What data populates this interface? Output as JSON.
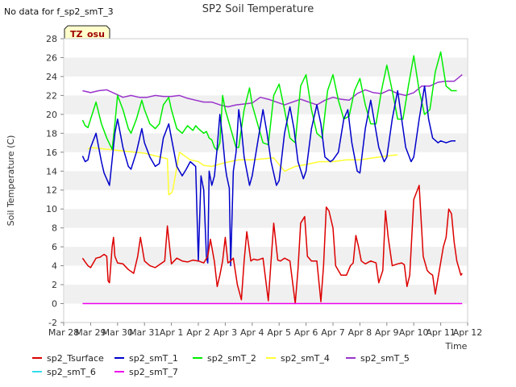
{
  "no_data_note": "No data for f_sp2_smT_3",
  "badge": "TZ_osu",
  "chart_data": {
    "type": "line",
    "title": "SP2 Soil Temperature",
    "ylabel": "Soil Temperature (C)",
    "xlabel": "Time",
    "ylim": [
      -2,
      28
    ],
    "xlim": [
      0,
      15
    ],
    "yticks": [
      -2,
      0,
      2,
      4,
      6,
      8,
      10,
      12,
      14,
      16,
      18,
      20,
      22,
      24,
      26,
      28
    ],
    "xticks": [
      "Mar 28",
      "Mar 29",
      "Mar 30",
      "Mar 31",
      "Apr 1",
      "Apr 2",
      "Apr 3",
      "Apr 4",
      "Apr 5",
      "Apr 6",
      "Apr 7",
      "Apr 8",
      "Apr 9",
      "Apr 10",
      "Apr 11",
      "Apr 12"
    ],
    "grid": true,
    "legend_position": "bottom",
    "series": [
      {
        "name": "sp2_Tsurface",
        "color": "#dd0000",
        "x": [
          0.7,
          0.8,
          0.9,
          1.0,
          1.2,
          1.35,
          1.5,
          1.6,
          1.65,
          1.7,
          1.8,
          1.85,
          1.9,
          2.0,
          2.2,
          2.4,
          2.6,
          2.75,
          2.85,
          3.0,
          3.2,
          3.4,
          3.6,
          3.75,
          3.85,
          4.0,
          4.2,
          4.4,
          4.6,
          4.8,
          5.0,
          5.2,
          5.35,
          5.45,
          5.6,
          5.7,
          5.8,
          5.9,
          6.0,
          6.1,
          6.2,
          6.3,
          6.45,
          6.6,
          6.7,
          6.8,
          6.95,
          7.05,
          7.2,
          7.4,
          7.6,
          7.7,
          7.8,
          7.95,
          8.05,
          8.2,
          8.4,
          8.6,
          8.7,
          8.8,
          8.95,
          9.05,
          9.2,
          9.4,
          9.55,
          9.65,
          9.75,
          9.85,
          10.0,
          10.1,
          10.3,
          10.5,
          10.65,
          10.75,
          10.85,
          10.95,
          11.05,
          11.2,
          11.4,
          11.6,
          11.7,
          11.85,
          11.95,
          12.05,
          12.2,
          12.4,
          12.55,
          12.65,
          12.75,
          12.85,
          13.0,
          13.2,
          13.35,
          13.5,
          13.6,
          13.7,
          13.8,
          13.95,
          14.1,
          14.2,
          14.3,
          14.4,
          14.5,
          14.6,
          14.7,
          14.75,
          14.8
        ],
        "y": [
          4.8,
          4.4,
          4.0,
          3.8,
          4.8,
          4.9,
          5.2,
          5.0,
          2.4,
          2.2,
          6.0,
          7.0,
          5.0,
          4.3,
          4.2,
          3.6,
          3.2,
          5.0,
          7.0,
          4.5,
          4.0,
          3.8,
          4.2,
          4.5,
          8.2,
          4.2,
          4.8,
          4.5,
          4.4,
          4.6,
          4.5,
          4.3,
          5.0,
          6.8,
          4.4,
          1.8,
          3.0,
          4.5,
          7.0,
          4.3,
          4.5,
          4.8,
          2.0,
          0.4,
          4.5,
          7.6,
          4.5,
          4.7,
          4.6,
          4.8,
          0.3,
          4.5,
          8.5,
          4.6,
          4.5,
          4.8,
          4.5,
          0.0,
          3.6,
          8.5,
          9.2,
          5.0,
          4.5,
          4.5,
          0.2,
          4.0,
          10.2,
          9.8,
          8.0,
          4.0,
          3.0,
          3.0,
          4.0,
          4.3,
          7.2,
          6.0,
          4.5,
          4.2,
          4.5,
          4.3,
          2.2,
          3.5,
          9.8,
          7.0,
          4.0,
          4.2,
          4.3,
          4.1,
          1.8,
          3.0,
          11.0,
          12.5,
          5.0,
          3.5,
          3.2,
          3.0,
          1.0,
          3.5,
          6.0,
          7.0,
          10.0,
          9.5,
          6.5,
          4.5,
          3.5,
          3.0,
          3.2
        ]
      },
      {
        "name": "sp2_smT_1",
        "color": "#0000cc",
        "x": [
          0.7,
          0.8,
          0.9,
          1.0,
          1.2,
          1.4,
          1.5,
          1.7,
          1.9,
          2.0,
          2.2,
          2.4,
          2.5,
          2.7,
          2.9,
          3.0,
          3.2,
          3.4,
          3.55,
          3.7,
          3.9,
          4.0,
          4.2,
          4.4,
          4.55,
          4.7,
          4.9,
          5.0,
          5.1,
          5.2,
          5.3,
          5.35,
          5.4,
          5.5,
          5.6,
          5.7,
          5.8,
          5.9,
          6.0,
          6.05,
          6.15,
          6.2,
          6.3,
          6.4,
          6.5,
          6.6,
          6.7,
          6.9,
          7.0,
          7.2,
          7.4,
          7.55,
          7.7,
          7.9,
          8.0,
          8.2,
          8.4,
          8.55,
          8.7,
          8.9,
          9.0,
          9.2,
          9.4,
          9.55,
          9.7,
          9.9,
          10.0,
          10.2,
          10.4,
          10.55,
          10.7,
          10.9,
          11.0,
          11.2,
          11.4,
          11.55,
          11.7,
          11.9,
          12.0,
          12.2,
          12.4,
          12.55,
          12.7,
          12.9,
          13.0,
          13.2,
          13.4,
          13.55,
          13.7,
          13.9,
          14.0,
          14.2,
          14.4,
          14.55
        ],
        "y": [
          15.6,
          15.0,
          15.2,
          16.5,
          18.0,
          15.0,
          13.8,
          12.5,
          18.0,
          19.5,
          16.5,
          14.5,
          14.2,
          16.0,
          18.5,
          17.0,
          15.5,
          14.5,
          14.8,
          17.5,
          19.0,
          17.5,
          14.5,
          13.5,
          14.2,
          15.0,
          14.5,
          4.5,
          13.5,
          12.0,
          5.0,
          4.3,
          14.0,
          12.5,
          13.5,
          16.5,
          20.0,
          17.5,
          14.5,
          13.5,
          12.2,
          4.0,
          14.0,
          16.0,
          20.5,
          18.5,
          15.5,
          12.5,
          13.5,
          17.0,
          20.5,
          18.0,
          15.0,
          12.5,
          13.0,
          18.0,
          20.8,
          18.5,
          15.0,
          13.2,
          14.0,
          18.5,
          21.0,
          19.0,
          15.5,
          15.0,
          15.2,
          16.0,
          19.5,
          20.5,
          17.0,
          14.0,
          13.8,
          18.5,
          21.5,
          19.0,
          16.5,
          15.0,
          15.5,
          19.5,
          22.5,
          19.5,
          16.5,
          15.0,
          15.5,
          19.5,
          23.0,
          19.5,
          17.5,
          17.0,
          17.2,
          17.0,
          17.2,
          17.2
        ]
      },
      {
        "name": "sp2_smT_2",
        "color": "#00ee00",
        "x": [
          0.7,
          0.8,
          0.9,
          1.0,
          1.2,
          1.4,
          1.6,
          1.8,
          1.9,
          2.0,
          2.2,
          2.4,
          2.5,
          2.7,
          2.9,
          3.0,
          3.2,
          3.4,
          3.55,
          3.7,
          3.9,
          4.0,
          4.2,
          4.4,
          4.6,
          4.8,
          4.9,
          5.0,
          5.2,
          5.3,
          5.4,
          5.5,
          5.6,
          5.7,
          5.8,
          5.9,
          6.0,
          6.2,
          6.4,
          6.5,
          6.7,
          6.9,
          7.0,
          7.2,
          7.4,
          7.6,
          7.8,
          8.0,
          8.2,
          8.4,
          8.6,
          8.8,
          9.0,
          9.2,
          9.4,
          9.6,
          9.8,
          10.0,
          10.2,
          10.4,
          10.6,
          10.8,
          11.0,
          11.2,
          11.4,
          11.6,
          11.8,
          12.0,
          12.2,
          12.4,
          12.6,
          12.8,
          13.0,
          13.2,
          13.4,
          13.6,
          13.8,
          14.0,
          14.2,
          14.4,
          14.6
        ],
        "y": [
          19.4,
          18.8,
          18.6,
          19.5,
          21.3,
          19.0,
          17.5,
          16.3,
          19.0,
          22.0,
          20.5,
          18.5,
          18.0,
          19.5,
          21.5,
          20.5,
          19.0,
          18.5,
          19.0,
          21.0,
          21.8,
          20.5,
          18.5,
          18.0,
          18.8,
          18.3,
          18.8,
          18.5,
          18.0,
          18.2,
          17.5,
          17.3,
          16.5,
          16.2,
          17.0,
          22.0,
          20.5,
          18.5,
          16.5,
          16.5,
          20.5,
          22.8,
          21.0,
          19.0,
          17.0,
          16.8,
          22.0,
          23.2,
          20.5,
          17.5,
          17.0,
          23.0,
          24.2,
          20.5,
          18.0,
          17.5,
          22.5,
          24.2,
          21.5,
          19.5,
          19.8,
          22.5,
          23.8,
          21.0,
          19.0,
          19.0,
          22.5,
          25.2,
          22.5,
          19.5,
          19.5,
          23.0,
          26.2,
          22.5,
          20.0,
          20.5,
          24.5,
          26.6,
          23.0,
          22.5,
          22.5
        ]
      },
      {
        "name": "sp2_smT_4",
        "color": "#ffff33",
        "x": [
          0.9,
          1.0,
          2.0,
          3.0,
          3.85,
          3.9,
          4.0,
          4.05,
          4.3,
          4.7,
          5.0,
          5.2,
          5.5,
          6.0,
          6.5,
          7.0,
          7.4,
          7.8,
          8.2,
          8.6,
          9.0,
          9.5,
          10.0,
          10.5,
          11.0,
          11.5,
          12.0,
          12.3,
          12.4
        ],
        "y": [
          16.3,
          16.5,
          16.2,
          15.9,
          15.3,
          11.5,
          11.7,
          12.0,
          16.0,
          15.2,
          15.0,
          14.6,
          14.5,
          14.9,
          15.2,
          15.2,
          15.3,
          15.4,
          14.0,
          14.5,
          14.7,
          15.0,
          15.0,
          15.2,
          15.2,
          15.4,
          15.6,
          15.7,
          15.7
        ]
      },
      {
        "name": "sp2_smT_5",
        "color": "#9933cc",
        "x": [
          0.7,
          1.0,
          1.3,
          1.6,
          1.9,
          2.2,
          2.5,
          2.8,
          3.1,
          3.4,
          3.7,
          4.0,
          4.3,
          4.6,
          4.9,
          5.2,
          5.5,
          5.8,
          6.1,
          6.4,
          6.7,
          7.0,
          7.3,
          7.6,
          7.9,
          8.2,
          8.5,
          8.8,
          9.1,
          9.4,
          9.7,
          10.0,
          10.3,
          10.6,
          10.9,
          11.2,
          11.5,
          11.8,
          12.1,
          12.4,
          12.7,
          13.0,
          13.3,
          13.6,
          13.9,
          14.2,
          14.5,
          14.8
        ],
        "y": [
          22.5,
          22.3,
          22.5,
          22.6,
          22.2,
          21.8,
          22.0,
          21.8,
          21.8,
          22.0,
          21.9,
          21.9,
          22.0,
          21.7,
          21.5,
          21.3,
          21.3,
          21.0,
          20.8,
          21.0,
          21.1,
          21.2,
          21.8,
          21.6,
          21.3,
          21.0,
          21.3,
          21.6,
          21.3,
          21.0,
          21.5,
          21.8,
          21.6,
          21.5,
          22.2,
          22.6,
          22.3,
          22.2,
          22.6,
          22.2,
          22.0,
          22.3,
          23.0,
          23.0,
          23.4,
          23.5,
          23.5,
          24.2
        ]
      },
      {
        "name": "sp2_smT_6",
        "color": "#33ddee",
        "x": [],
        "y": []
      },
      {
        "name": "sp2_smT_7",
        "color": "#ee00ee",
        "x": [
          0.7,
          14.8
        ],
        "y": [
          0.0,
          0.0
        ]
      }
    ]
  }
}
